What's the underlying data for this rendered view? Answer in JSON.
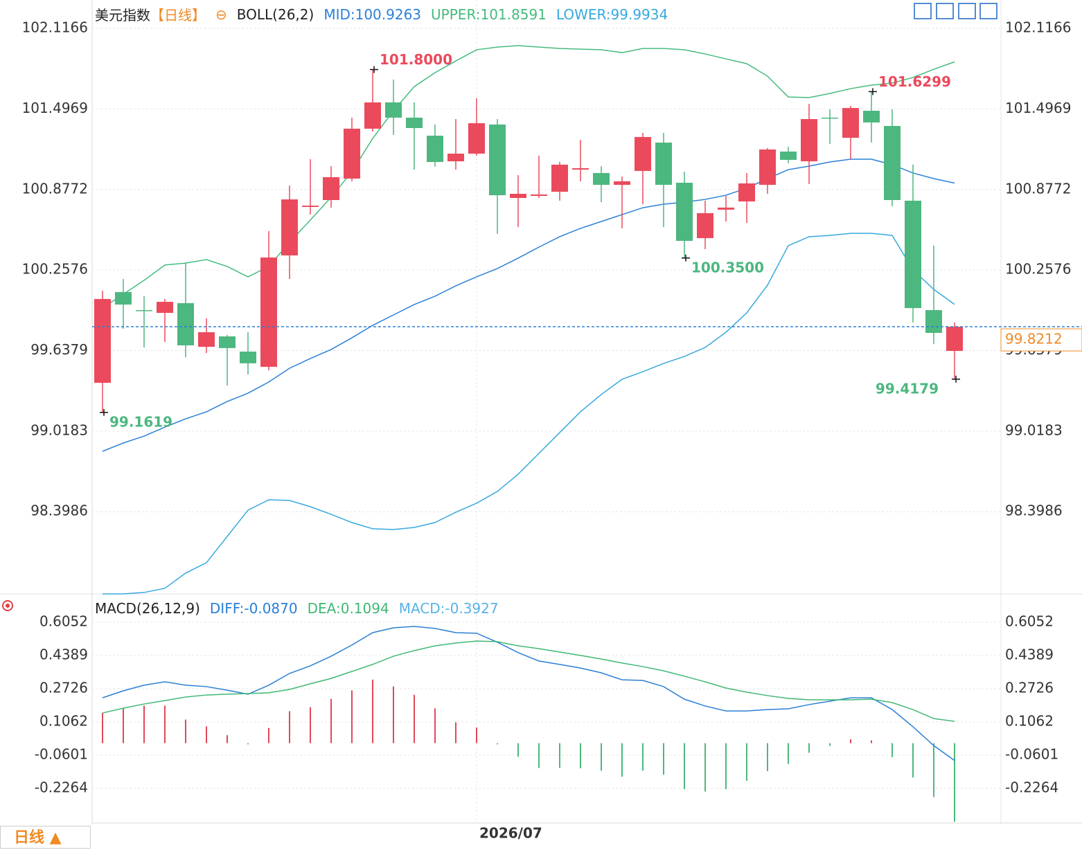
{
  "header": {
    "period_button": "日线 ▲"
  },
  "chart_data": [
    {
      "type": "candlestick",
      "title": "美元指数",
      "subtitle": "【日线】",
      "indicator": "BOLL(26,2)",
      "categories": [
        null,
        null,
        null,
        null,
        null,
        null,
        null,
        null,
        null,
        null,
        null,
        null,
        null,
        null,
        null,
        null,
        null,
        null,
        "2026/07",
        null,
        null,
        null,
        null,
        null,
        null,
        null,
        null,
        null,
        null,
        null,
        null,
        null,
        null,
        null,
        null,
        null,
        null,
        null,
        null,
        null,
        null,
        null
      ],
      "open": [
        99.39,
        100.088,
        99.949,
        99.928,
        100.003,
        99.667,
        99.747,
        99.63,
        99.513,
        100.37,
        100.743,
        100.796,
        100.961,
        101.345,
        101.547,
        101.43,
        101.291,
        101.094,
        101.153,
        101.377,
        100.812,
        100.828,
        100.86,
        101.03,
        101.004,
        100.913,
        101.02,
        101.238,
        100.929,
        100.503,
        100.722,
        100.785,
        100.913,
        101.169,
        101.094,
        101.43,
        101.275,
        101.483,
        101.366,
        100.791,
        99.949,
        99.635
      ],
      "high": [
        100.098,
        100.189,
        100.056,
        100.035,
        100.312,
        99.886,
        99.758,
        99.779,
        100.557,
        100.908,
        101.11,
        101.057,
        101.43,
        101.8,
        101.723,
        101.547,
        101.377,
        101.419,
        101.579,
        101.419,
        100.988,
        101.137,
        101.089,
        101.259,
        101.057,
        100.977,
        101.313,
        101.313,
        101.014,
        100.791,
        100.828,
        101.004,
        101.196,
        101.206,
        101.536,
        101.494,
        101.52,
        101.6299,
        101.494,
        101.068,
        100.445,
        99.854
      ],
      "low": [
        99.1619,
        99.806,
        99.662,
        99.704,
        99.587,
        99.619,
        99.369,
        99.454,
        99.486,
        100.189,
        100.684,
        100.737,
        100.94,
        101.323,
        101.297,
        101.03,
        101.052,
        101.03,
        101.137,
        100.535,
        100.588,
        100.812,
        100.791,
        100.94,
        100.78,
        100.578,
        100.764,
        100.588,
        100.35,
        100.418,
        100.631,
        100.62,
        100.844,
        101.078,
        100.919,
        101.227,
        101.11,
        101.238,
        100.748,
        99.854,
        99.688,
        99.4179
      ],
      "close": [
        100.035,
        99.992,
        99.944,
        100.013,
        99.678,
        99.779,
        99.657,
        99.54,
        100.354,
        100.801,
        100.753,
        100.972,
        101.345,
        101.547,
        101.43,
        101.35,
        101.089,
        101.153,
        101.387,
        100.833,
        100.844,
        100.839,
        101.068,
        101.041,
        100.913,
        100.94,
        101.281,
        100.913,
        100.482,
        100.695,
        100.738,
        100.924,
        101.185,
        101.105,
        101.419,
        101.425,
        101.504,
        101.393,
        100.796,
        99.965,
        99.774,
        99.8212
      ],
      "up_color": "#eb4a5c",
      "down_color": "#4cb77f",
      "last_price_color": "#f08a24",
      "series": [
        {
          "name": "MID:100.9263",
          "color": "#2a80d8",
          "values": [
            98.863,
            98.927,
            98.98,
            99.049,
            99.113,
            99.167,
            99.246,
            99.31,
            99.396,
            99.502,
            99.577,
            99.646,
            99.736,
            99.832,
            99.912,
            99.992,
            100.056,
            100.136,
            100.205,
            100.269,
            100.349,
            100.434,
            100.514,
            100.578,
            100.631,
            100.684,
            100.737,
            100.764,
            100.78,
            100.801,
            100.833,
            100.887,
            100.961,
            101.03,
            101.057,
            101.089,
            101.11,
            101.11,
            101.068,
            101.004,
            100.961,
            100.9263
          ]
        },
        {
          "name": "UPPER:101.8591",
          "color": "#45bb7c",
          "values": [
            99.965,
            100.072,
            100.178,
            100.296,
            100.311,
            100.338,
            100.285,
            100.205,
            100.285,
            100.471,
            100.642,
            100.817,
            101.014,
            101.27,
            101.483,
            101.669,
            101.776,
            101.866,
            101.952,
            101.973,
            101.984,
            101.973,
            101.962,
            101.957,
            101.952,
            101.93,
            101.962,
            101.962,
            101.952,
            101.92,
            101.882,
            101.845,
            101.749,
            101.589,
            101.584,
            101.616,
            101.653,
            101.68,
            101.696,
            101.739,
            101.802,
            101.8591
          ]
        },
        {
          "name": "LOWER:99.9934",
          "color": "#36a9de",
          "values": [
            97.766,
            97.766,
            97.777,
            97.809,
            97.926,
            98.006,
            98.208,
            98.41,
            98.49,
            98.485,
            98.437,
            98.378,
            98.315,
            98.267,
            98.261,
            98.277,
            98.315,
            98.394,
            98.464,
            98.554,
            98.687,
            98.847,
            99.007,
            99.167,
            99.3,
            99.417,
            99.475,
            99.539,
            99.593,
            99.662,
            99.779,
            99.928,
            100.141,
            100.445,
            100.514,
            100.524,
            100.54,
            100.54,
            100.524,
            100.258,
            100.109,
            99.9934
          ]
        }
      ],
      "annotations": [
        {
          "label": "101.8000",
          "value": 101.8
        },
        {
          "label": "101.6299",
          "value": 101.6299
        },
        {
          "label": "100.3500",
          "value": 100.35
        },
        {
          "label": "99.1619",
          "value": 99.1619
        },
        {
          "label": "99.4179",
          "value": 99.4179
        }
      ],
      "ylim": [
        97.766,
        102.335
      ],
      "yticks": [
        102.1166,
        101.4969,
        100.8772,
        100.2576,
        99.6379,
        99.0183,
        98.3986
      ],
      "grid": true
    },
    {
      "type": "combo",
      "title": "MACD(26,12,9)",
      "up_color": "#e0485a",
      "down_color": "#4cb87c",
      "series": [
        {
          "name": "DIFF:-0.0870",
          "type": "line",
          "color": "#2a7fd4",
          "values": [
            0.227,
            0.262,
            0.29,
            0.307,
            0.29,
            0.283,
            0.265,
            0.245,
            0.29,
            0.349,
            0.387,
            0.435,
            0.491,
            0.553,
            0.577,
            0.584,
            0.574,
            0.553,
            0.55,
            0.505,
            0.453,
            0.411,
            0.394,
            0.376,
            0.352,
            0.317,
            0.314,
            0.283,
            0.22,
            0.186,
            0.161,
            0.161,
            0.168,
            0.172,
            0.193,
            0.21,
            0.227,
            0.227,
            0.168,
            0.082,
            -0.012,
            -0.087
          ]
        },
        {
          "name": "DEA:0.1094",
          "type": "line",
          "color": "#3fb874",
          "values": [
            0.151,
            0.175,
            0.196,
            0.213,
            0.231,
            0.241,
            0.245,
            0.248,
            0.252,
            0.269,
            0.297,
            0.324,
            0.359,
            0.394,
            0.435,
            0.463,
            0.487,
            0.501,
            0.511,
            0.508,
            0.487,
            0.473,
            0.456,
            0.439,
            0.421,
            0.401,
            0.383,
            0.362,
            0.335,
            0.307,
            0.276,
            0.255,
            0.238,
            0.224,
            0.217,
            0.217,
            0.217,
            0.22,
            0.203,
            0.168,
            0.123,
            0.1094
          ]
        },
        {
          "name": "MACD:-0.3927",
          "type": "bar",
          "color": "#57b3e6",
          "values": [
            0.152,
            0.174,
            0.188,
            0.188,
            0.118,
            0.084,
            0.04,
            -0.006,
            0.076,
            0.16,
            0.18,
            0.222,
            0.264,
            0.318,
            0.284,
            0.242,
            0.174,
            0.104,
            0.078,
            -0.006,
            -0.068,
            -0.124,
            -0.124,
            -0.126,
            -0.138,
            -0.168,
            -0.138,
            -0.158,
            -0.23,
            -0.242,
            -0.23,
            -0.188,
            -0.14,
            -0.104,
            -0.048,
            -0.014,
            0.02,
            0.014,
            -0.07,
            -0.172,
            -0.27,
            -0.3927
          ]
        }
      ],
      "ylim": [
        -0.396,
        0.733
      ],
      "yticks": [
        0.6052,
        0.4389,
        0.2726,
        0.1062,
        -0.0601,
        -0.2264
      ],
      "grid": true
    }
  ]
}
